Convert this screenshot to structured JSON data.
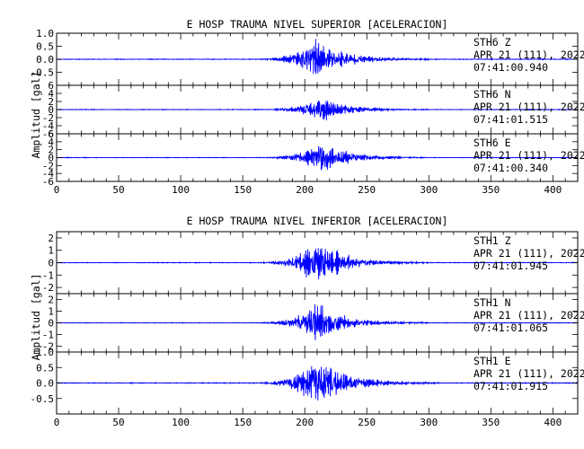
{
  "chart_data": [
    {
      "type": "line",
      "title": "E HOSP TRAUMA NIVEL SUPERIOR [ACELERACION]",
      "ylabel": "Amplitud [gal]",
      "xlim": [
        0,
        420
      ],
      "xticks": [
        0,
        50,
        100,
        150,
        200,
        250,
        300,
        350,
        400
      ],
      "series_color": "#0000ff",
      "channels": [
        {
          "name": "STH6 Z",
          "station": "STH6",
          "component": "Z",
          "date": "APR 21 (111), 2022",
          "time": "07:41:00.940",
          "ylim": [
            -1.0,
            1.0
          ],
          "yticks": [
            -0.5,
            0.0,
            0.5,
            1.0
          ],
          "ytick_labels": [
            "-0.5",
            "0.0",
            "0.5",
            "1.0"
          ],
          "peak": 0.95,
          "event_start": 157,
          "event_peak": 210,
          "event_end": 300,
          "noise": 0.015,
          "seed": 11
        },
        {
          "name": "STH6 N",
          "station": "STH6",
          "component": "N",
          "date": "APR 21 (111), 2022",
          "time": "07:41:01.515",
          "ylim": [
            -6,
            6
          ],
          "yticks": [
            -6,
            -4,
            -2,
            0,
            2,
            4,
            6
          ],
          "ytick_labels": [
            "-6",
            "-4",
            "-2",
            "0",
            "2",
            "4",
            "6"
          ],
          "peak": 3.6,
          "event_start": 160,
          "event_peak": 212,
          "event_end": 300,
          "noise": 0.08,
          "seed": 23
        },
        {
          "name": "STH6 E",
          "station": "STH6",
          "component": "E",
          "date": "APR 21 (111), 2022",
          "time": "07:41:00.340",
          "ylim": [
            -6,
            6
          ],
          "yticks": [
            -6,
            -4,
            -2,
            0,
            2,
            4,
            6
          ],
          "ytick_labels": [
            "-6",
            "-4",
            "-2",
            "0",
            "2",
            "4",
            "6"
          ],
          "peak": 4.8,
          "event_start": 160,
          "event_peak": 215,
          "event_end": 300,
          "noise": 0.08,
          "seed": 37
        }
      ]
    },
    {
      "type": "line",
      "title": "E HOSP TRAUMA NIVEL INFERIOR [ACELERACION]",
      "ylabel": "Amplitud [gal]",
      "xlim": [
        0,
        420
      ],
      "xticks": [
        0,
        50,
        100,
        150,
        200,
        250,
        300,
        350,
        400
      ],
      "series_color": "#0000ff",
      "channels": [
        {
          "name": "STH1 Z",
          "station": "STH1",
          "component": "Z",
          "date": "APR 21 (111), 2022",
          "time": "07:41:01.945",
          "ylim": [
            -2.5,
            2.5
          ],
          "yticks": [
            -2,
            -1,
            0,
            1,
            2
          ],
          "ytick_labels": [
            "-2",
            "-1",
            "0",
            "1",
            "2"
          ],
          "peak": 2.1,
          "event_start": 157,
          "event_peak": 210,
          "event_end": 300,
          "noise": 0.03,
          "seed": 53
        },
        {
          "name": "STH1 N",
          "station": "STH1",
          "component": "N",
          "date": "APR 21 (111), 2022",
          "time": "07:41:01.065",
          "ylim": [
            -2.5,
            2.5
          ],
          "yticks": [
            -2,
            -1,
            0,
            1,
            2
          ],
          "ytick_labels": [
            "-2",
            "-1",
            "0",
            "1",
            "2"
          ],
          "peak": 2.0,
          "event_start": 157,
          "event_peak": 210,
          "event_end": 300,
          "noise": 0.03,
          "seed": 71
        },
        {
          "name": "STH1 E",
          "station": "STH1",
          "component": "E",
          "date": "APR 21 (111), 2022",
          "time": "07:41:01.915",
          "ylim": [
            -1.0,
            1.0
          ],
          "yticks": [
            -0.5,
            0.0,
            0.5,
            1.0
          ],
          "ytick_labels": [
            "-0.5",
            "0.0",
            "0.5",
            "1.0"
          ],
          "peak": 0.95,
          "event_start": 155,
          "event_peak": 210,
          "event_end": 310,
          "noise": 0.015,
          "seed": 89
        }
      ]
    }
  ]
}
